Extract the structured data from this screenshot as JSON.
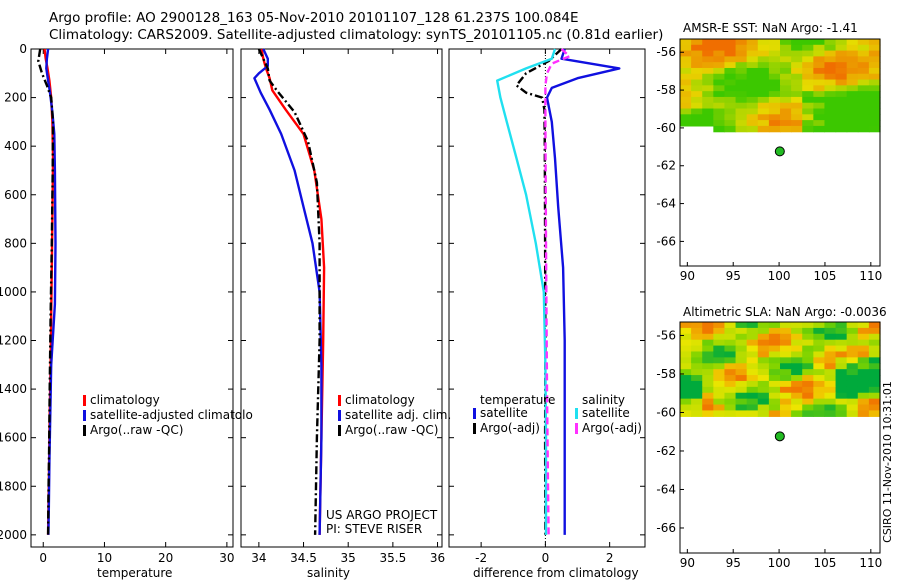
{
  "header": {
    "line1": "Argo profile: AO 2900128_163 05-Nov-2010 20101107_128 61.237S 100.084E",
    "line2": "Climatology: CARS2009. Satellite-adjusted climatology: synTS_20101105.nc (0.81d earlier)"
  },
  "credit": "CSIRO 11-Nov-2010 10:31:01",
  "project": {
    "line1": "US ARGO PROJECT",
    "line2": "PI: STEVE RISER"
  },
  "colors": {
    "climatology": "#ff0000",
    "satellite": "#1010e0",
    "argo": "#000000",
    "sat_salinity": "#20e0f0",
    "argo_salinity": "#ff30ff"
  },
  "chart_data": [
    {
      "type": "line",
      "id": "temperature",
      "xlabel": "temperature",
      "ylabel": "",
      "invert_y": true,
      "xlim": [
        -2,
        31
      ],
      "ylim": [
        0,
        2050
      ],
      "xticks": [
        0,
        10,
        20,
        30
      ],
      "yticks": [
        0,
        200,
        400,
        600,
        800,
        1000,
        1200,
        1400,
        1600,
        1800,
        2000
      ],
      "legend": [
        "climatology",
        "satellite-adjusted climatolo",
        "Argo(..raw -QC)"
      ],
      "series": [
        {
          "name": "climatology",
          "style": "solid",
          "color": "#ff0000",
          "x": [
            0.2,
            0.4,
            0.7,
            1.0,
            1.3,
            1.5,
            1.6,
            1.5,
            1.35,
            1.2,
            1.05,
            0.95,
            0.85,
            0.8
          ],
          "y": [
            0,
            40,
            80,
            130,
            200,
            300,
            450,
            700,
            1000,
            1300,
            1500,
            1700,
            1900,
            2000
          ]
        },
        {
          "name": "satellite-adjusted climatology",
          "style": "solid",
          "color": "#1010e0",
          "x": [
            0.8,
            0.6,
            0.5,
            0.8,
            1.1,
            1.5,
            1.8,
            1.9,
            2.0,
            1.9,
            1.3,
            1.15,
            1.0,
            0.9,
            0.85
          ],
          "y": [
            0,
            40,
            80,
            130,
            180,
            260,
            350,
            500,
            800,
            1050,
            1300,
            1500,
            1700,
            1900,
            2000
          ]
        },
        {
          "name": "Argo(..raw -QC)",
          "style": "dashdot",
          "color": "#000000",
          "x": [
            -0.5,
            -0.8,
            -0.2,
            0.6,
            1.3,
            1.6,
            1.55,
            1.4,
            1.2,
            1.05,
            0.95,
            0.85,
            0.8
          ],
          "y": [
            0,
            50,
            100,
            150,
            200,
            300,
            500,
            800,
            1100,
            1400,
            1650,
            1850,
            2000
          ]
        }
      ]
    },
    {
      "type": "line",
      "id": "salinity",
      "xlabel": "salinity",
      "ylabel": "",
      "invert_y": true,
      "xlim": [
        33.8,
        36.05
      ],
      "ylim": [
        0,
        2050
      ],
      "xticks": [
        34,
        34.5,
        35,
        35.5,
        36
      ],
      "legend": [
        "climatology",
        "satellite adj. clim.",
        "Argo(..raw -QC)"
      ],
      "series": [
        {
          "name": "climatology",
          "style": "solid",
          "color": "#ff0000",
          "x": [
            34.03,
            34.05,
            34.08,
            34.12,
            34.15,
            34.3,
            34.5,
            34.62,
            34.7,
            34.73,
            34.72,
            34.7,
            34.68
          ],
          "y": [
            0,
            40,
            80,
            120,
            170,
            250,
            350,
            500,
            700,
            900,
            1200,
            1600,
            2000
          ]
        },
        {
          "name": "satellite adj. clim.",
          "style": "solid",
          "color": "#1010e0",
          "x": [
            34.05,
            34.1,
            34.1,
            34.0,
            33.95,
            34.02,
            34.12,
            34.25,
            34.4,
            34.5,
            34.6,
            34.68,
            34.7,
            34.7,
            34.68
          ],
          "y": [
            0,
            40,
            70,
            100,
            120,
            180,
            250,
            350,
            500,
            650,
            800,
            1000,
            1300,
            1600,
            2000
          ]
        },
        {
          "name": "Argo(..raw -QC)",
          "style": "dashdot",
          "color": "#000000",
          "x": [
            34.0,
            34.05,
            34.1,
            34.12,
            34.2,
            34.4,
            34.55,
            34.65,
            34.68,
            34.68,
            34.65,
            34.63
          ],
          "y": [
            0,
            40,
            80,
            130,
            170,
            260,
            380,
            550,
            800,
            1200,
            1600,
            2000
          ]
        }
      ]
    },
    {
      "type": "line",
      "id": "difference",
      "xlabel": "difference from climatology",
      "ylabel": "",
      "invert_y": true,
      "xlim": [
        -3,
        3.1
      ],
      "ylim": [
        0,
        2050
      ],
      "xticks": [
        -2,
        0,
        2
      ],
      "legend": [
        "temperature",
        "satellite",
        "Argo(-adj)",
        "salinity",
        "satellite",
        "Argo(-adj)"
      ],
      "series": [
        {
          "name": "temperature satellite",
          "style": "solid",
          "color": "#1010e0",
          "x": [
            0.6,
            0.5,
            2.3,
            1.0,
            0.2,
            0.05,
            0.2,
            0.3,
            0.4,
            0.55,
            0.6,
            0.6,
            0.6
          ],
          "y": [
            0,
            40,
            80,
            120,
            160,
            200,
            300,
            450,
            650,
            900,
            1200,
            1600,
            2000
          ]
        },
        {
          "name": "temperature Argo(-adj)",
          "style": "dashdot",
          "color": "#000000",
          "x": [
            0.5,
            0.1,
            -0.6,
            -0.9,
            -0.6,
            -0.1,
            -0.03,
            -0.02,
            -0.01,
            0.0,
            -0.01,
            0.0
          ],
          "y": [
            0,
            50,
            100,
            150,
            180,
            200,
            250,
            400,
            800,
            1200,
            1600,
            2000
          ]
        },
        {
          "name": "salinity satellite",
          "style": "solid",
          "color": "#20e0f0",
          "x": [
            0.3,
            0.2,
            -0.6,
            -1.5,
            -1.4,
            -1.2,
            -0.9,
            -0.6,
            -0.3,
            -0.05,
            0.0,
            0.02,
            0.02
          ],
          "y": [
            0,
            40,
            80,
            130,
            200,
            300,
            450,
            600,
            800,
            1000,
            1300,
            1600,
            2000
          ]
        },
        {
          "name": "salinity Argo(-adj)",
          "style": "dash",
          "color": "#ff30ff",
          "x": [
            0.5,
            0.75,
            0.2,
            0.05,
            0.0,
            0.0,
            0.02,
            0.05,
            0.08,
            0.1
          ],
          "y": [
            0,
            30,
            60,
            100,
            150,
            300,
            800,
            1400,
            1800,
            2000
          ]
        }
      ]
    },
    {
      "type": "heatmap",
      "id": "sst_map",
      "title": "AMSR-E SST: NaN Argo: -1.41",
      "xlim": [
        89.2,
        111
      ],
      "ylim": [
        -67.3,
        -55.3
      ],
      "xticks": [
        90,
        95,
        100,
        105,
        110
      ],
      "yticks": [
        -56,
        -58,
        -60,
        -62,
        -64,
        -66
      ],
      "data_bottom_lat": -60.2,
      "marker": {
        "lon": 100.08,
        "lat": -61.24
      }
    },
    {
      "type": "heatmap",
      "id": "sla_map",
      "title": "Altimetric SLA: NaN Argo: -0.0036",
      "xlim": [
        89.2,
        111
      ],
      "ylim": [
        -67.3,
        -55.3
      ],
      "xticks": [
        90,
        95,
        100,
        105,
        110
      ],
      "yticks": [
        -56,
        -58,
        -60,
        -62,
        -64,
        -66
      ],
      "data_bottom_lat": -60.2,
      "marker": {
        "lon": 100.08,
        "lat": -61.24
      }
    }
  ]
}
